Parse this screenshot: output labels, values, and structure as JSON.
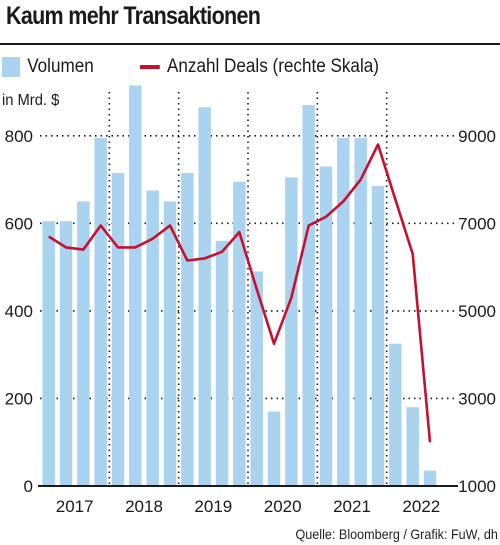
{
  "header": {
    "title": "Kaum mehr Transaktionen",
    "legend_volume": "Volumen",
    "legend_deals": "Anzahl Deals (rechte Skala)",
    "unit_label": "in Mrd. $",
    "source": "Quelle: Bloomberg / Grafik: FuW, dh"
  },
  "colors": {
    "bars": "#a9d3ee",
    "line": "#c8102e",
    "grid": "#1a1a1a"
  },
  "chart_data": {
    "type": "bar",
    "title": "Kaum mehr Transaktionen",
    "ylabel": "in Mrd. $",
    "ylim": [
      0,
      900
    ],
    "yticks": [
      0,
      200,
      400,
      600,
      800
    ],
    "y2lim": [
      1000,
      10000
    ],
    "y2ticks": [
      1000,
      3000,
      5000,
      7000,
      9000
    ],
    "year_labels": [
      "2017",
      "2018",
      "2019",
      "2020",
      "2021",
      "2022"
    ],
    "categories": [
      "2017 Q1",
      "2017 Q2",
      "2017 Q3",
      "2017 Q4",
      "2018 Q1",
      "2018 Q2",
      "2018 Q3",
      "2018 Q4",
      "2019 Q1",
      "2019 Q2",
      "2019 Q3",
      "2019 Q4",
      "2020 Q1",
      "2020 Q2",
      "2020 Q3",
      "2020 Q4",
      "2021 Q1",
      "2021 Q2",
      "2021 Q3",
      "2021 Q4",
      "2022 Q1",
      "2022 Q2",
      "2022 Q3",
      "2022 Q4"
    ],
    "series": [
      {
        "name": "Volumen",
        "axis": "left",
        "kind": "bar",
        "values": [
          605,
          605,
          650,
          795,
          715,
          915,
          675,
          650,
          715,
          865,
          560,
          695,
          490,
          170,
          705,
          870,
          730,
          795,
          795,
          685,
          325,
          180,
          35,
          null
        ]
      },
      {
        "name": "Anzahl Deals (rechte Skala)",
        "axis": "right",
        "kind": "line",
        "values": [
          6700,
          6450,
          6400,
          6950,
          6450,
          6450,
          6650,
          6950,
          6150,
          6200,
          6350,
          6800,
          5500,
          4250,
          5300,
          6950,
          7150,
          7500,
          8000,
          8800,
          7550,
          6300,
          2000,
          null
        ]
      }
    ],
    "grid": true,
    "legend_position": "top-left"
  }
}
